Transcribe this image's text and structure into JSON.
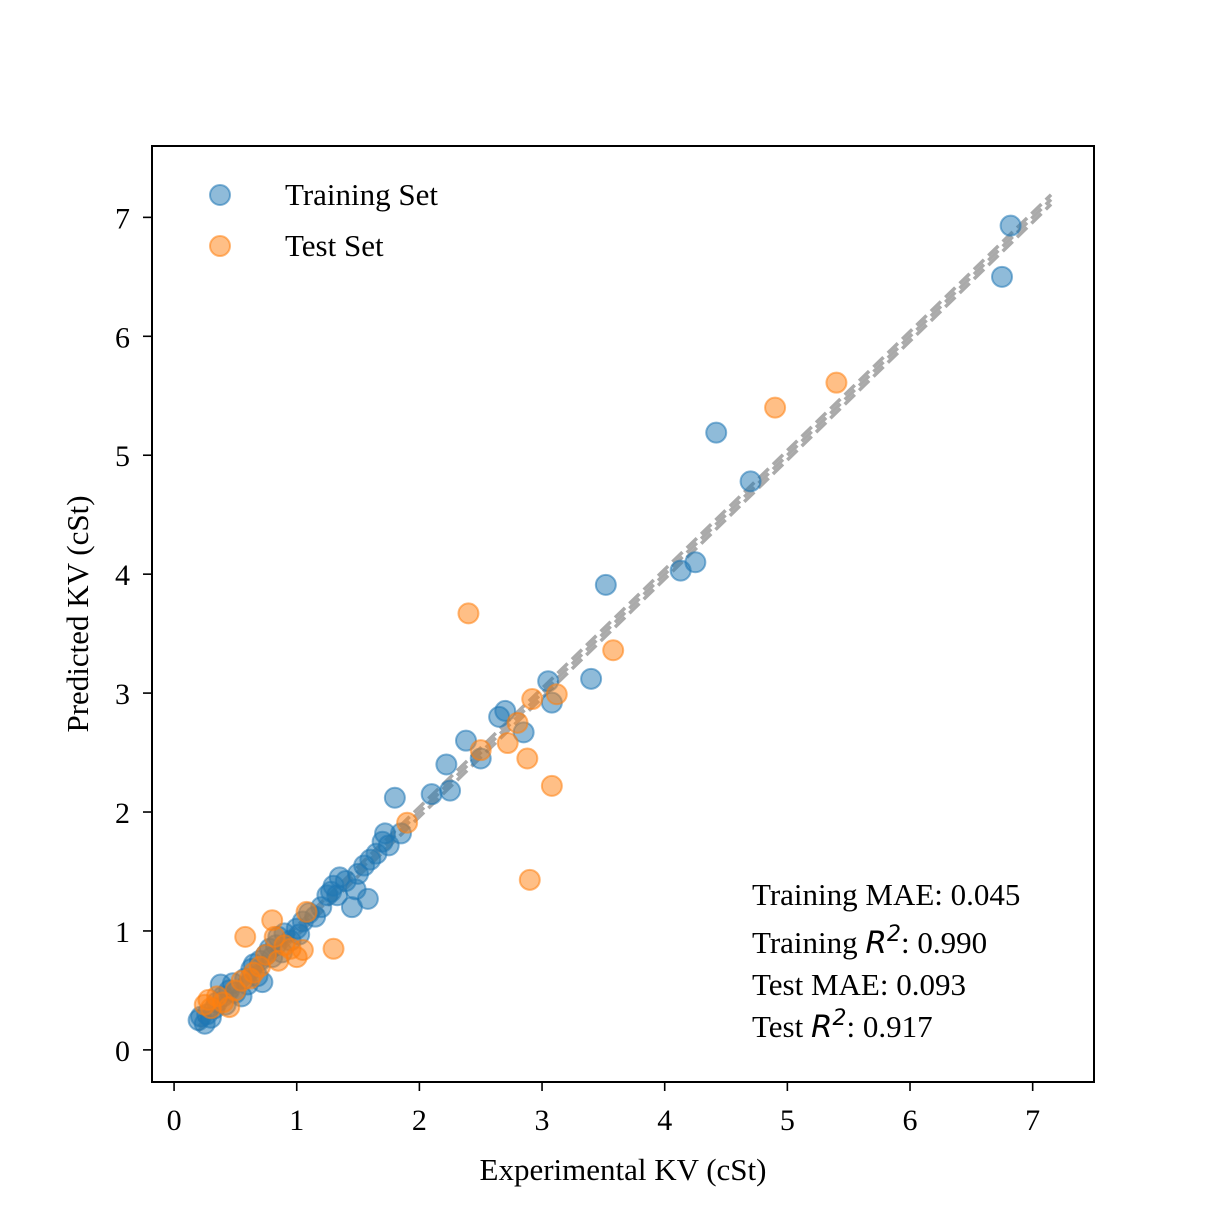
{
  "chart_data": {
    "type": "scatter",
    "xlabel": "Experimental KV (cSt)",
    "ylabel": "Predicted KV (cSt)",
    "xlim": [
      -0.18,
      7.5
    ],
    "ylim": [
      -0.27,
      7.6
    ],
    "xticks": [
      0,
      1,
      2,
      3,
      4,
      5,
      6,
      7
    ],
    "yticks": [
      0,
      1,
      2,
      3,
      4,
      5,
      6,
      7
    ],
    "grid": false,
    "legend_position": "top-left",
    "colors": {
      "training": "#1f77b4",
      "test": "#ff7f0e",
      "reference_lines": "#aaaaaa"
    },
    "reference_lines": [
      {
        "style": "dashed",
        "intercept": 0.04
      },
      {
        "style": "dashed",
        "intercept": 0.0
      },
      {
        "style": "dashed",
        "intercept": -0.04
      }
    ],
    "reference_x_range": [
      0.2,
      7.15
    ],
    "series": [
      {
        "name": "Training Set",
        "color": "#1f77b4",
        "points": [
          [
            0.2,
            0.25
          ],
          [
            0.22,
            0.28
          ],
          [
            0.25,
            0.22
          ],
          [
            0.27,
            0.3
          ],
          [
            0.3,
            0.27
          ],
          [
            0.33,
            0.35
          ],
          [
            0.35,
            0.4
          ],
          [
            0.38,
            0.55
          ],
          [
            0.4,
            0.45
          ],
          [
            0.42,
            0.38
          ],
          [
            0.45,
            0.5
          ],
          [
            0.48,
            0.56
          ],
          [
            0.5,
            0.48
          ],
          [
            0.55,
            0.45
          ],
          [
            0.58,
            0.6
          ],
          [
            0.6,
            0.55
          ],
          [
            0.63,
            0.68
          ],
          [
            0.65,
            0.72
          ],
          [
            0.68,
            0.62
          ],
          [
            0.7,
            0.75
          ],
          [
            0.72,
            0.57
          ],
          [
            0.75,
            0.8
          ],
          [
            0.78,
            0.85
          ],
          [
            0.8,
            0.78
          ],
          [
            0.83,
            0.88
          ],
          [
            0.85,
            0.95
          ],
          [
            0.88,
            0.82
          ],
          [
            0.9,
            0.98
          ],
          [
            0.95,
            0.92
          ],
          [
            1.0,
            1.02
          ],
          [
            1.02,
            0.97
          ],
          [
            1.05,
            1.08
          ],
          [
            1.1,
            1.15
          ],
          [
            1.15,
            1.12
          ],
          [
            1.2,
            1.2
          ],
          [
            1.25,
            1.3
          ],
          [
            1.28,
            1.33
          ],
          [
            1.3,
            1.38
          ],
          [
            1.33,
            1.3
          ],
          [
            1.35,
            1.45
          ],
          [
            1.4,
            1.42
          ],
          [
            1.45,
            1.2
          ],
          [
            1.48,
            1.35
          ],
          [
            1.5,
            1.48
          ],
          [
            1.55,
            1.55
          ],
          [
            1.58,
            1.27
          ],
          [
            1.6,
            1.6
          ],
          [
            1.65,
            1.65
          ],
          [
            1.7,
            1.75
          ],
          [
            1.72,
            1.82
          ],
          [
            1.75,
            1.72
          ],
          [
            1.8,
            2.12
          ],
          [
            1.85,
            1.82
          ],
          [
            2.1,
            2.15
          ],
          [
            2.22,
            2.4
          ],
          [
            2.25,
            2.18
          ],
          [
            2.38,
            2.6
          ],
          [
            2.5,
            2.45
          ],
          [
            2.65,
            2.8
          ],
          [
            2.7,
            2.85
          ],
          [
            2.85,
            2.67
          ],
          [
            3.05,
            3.1
          ],
          [
            3.08,
            2.92
          ],
          [
            3.4,
            3.12
          ],
          [
            3.52,
            3.91
          ],
          [
            4.13,
            4.03
          ],
          [
            4.25,
            4.1
          ],
          [
            4.42,
            5.19
          ],
          [
            4.7,
            4.78
          ],
          [
            6.75,
            6.5
          ],
          [
            6.82,
            6.93
          ]
        ]
      },
      {
        "name": "Test Set",
        "color": "#ff7f0e",
        "points": [
          [
            0.25,
            0.38
          ],
          [
            0.28,
            0.42
          ],
          [
            0.3,
            0.35
          ],
          [
            0.35,
            0.45
          ],
          [
            0.4,
            0.4
          ],
          [
            0.45,
            0.36
          ],
          [
            0.5,
            0.5
          ],
          [
            0.55,
            0.58
          ],
          [
            0.58,
            0.95
          ],
          [
            0.62,
            0.6
          ],
          [
            0.65,
            0.65
          ],
          [
            0.7,
            0.7
          ],
          [
            0.75,
            0.8
          ],
          [
            0.8,
            1.09
          ],
          [
            0.82,
            0.95
          ],
          [
            0.85,
            0.75
          ],
          [
            0.9,
            0.88
          ],
          [
            0.95,
            0.85
          ],
          [
            1.0,
            0.78
          ],
          [
            1.05,
            0.84
          ],
          [
            1.08,
            1.16
          ],
          [
            1.3,
            0.85
          ],
          [
            1.9,
            1.91
          ],
          [
            2.4,
            3.67
          ],
          [
            2.5,
            2.52
          ],
          [
            2.72,
            2.58
          ],
          [
            2.8,
            2.75
          ],
          [
            2.88,
            2.45
          ],
          [
            2.9,
            1.43
          ],
          [
            2.92,
            2.95
          ],
          [
            3.08,
            2.22
          ],
          [
            3.12,
            2.99
          ],
          [
            3.58,
            3.36
          ],
          [
            4.9,
            5.4
          ],
          [
            5.4,
            5.61
          ]
        ]
      }
    ],
    "metrics": [
      {
        "prefix": "Training MAE: ",
        "symbol": "",
        "value": "0.045"
      },
      {
        "prefix": "Training ",
        "symbol": "R",
        "superscript": "2",
        "value": ": 0.990"
      },
      {
        "prefix": "Test MAE: ",
        "symbol": "",
        "value": "0.093"
      },
      {
        "prefix": "Test ",
        "symbol": "R",
        "superscript": "2",
        "value": ": 0.917"
      }
    ]
  }
}
